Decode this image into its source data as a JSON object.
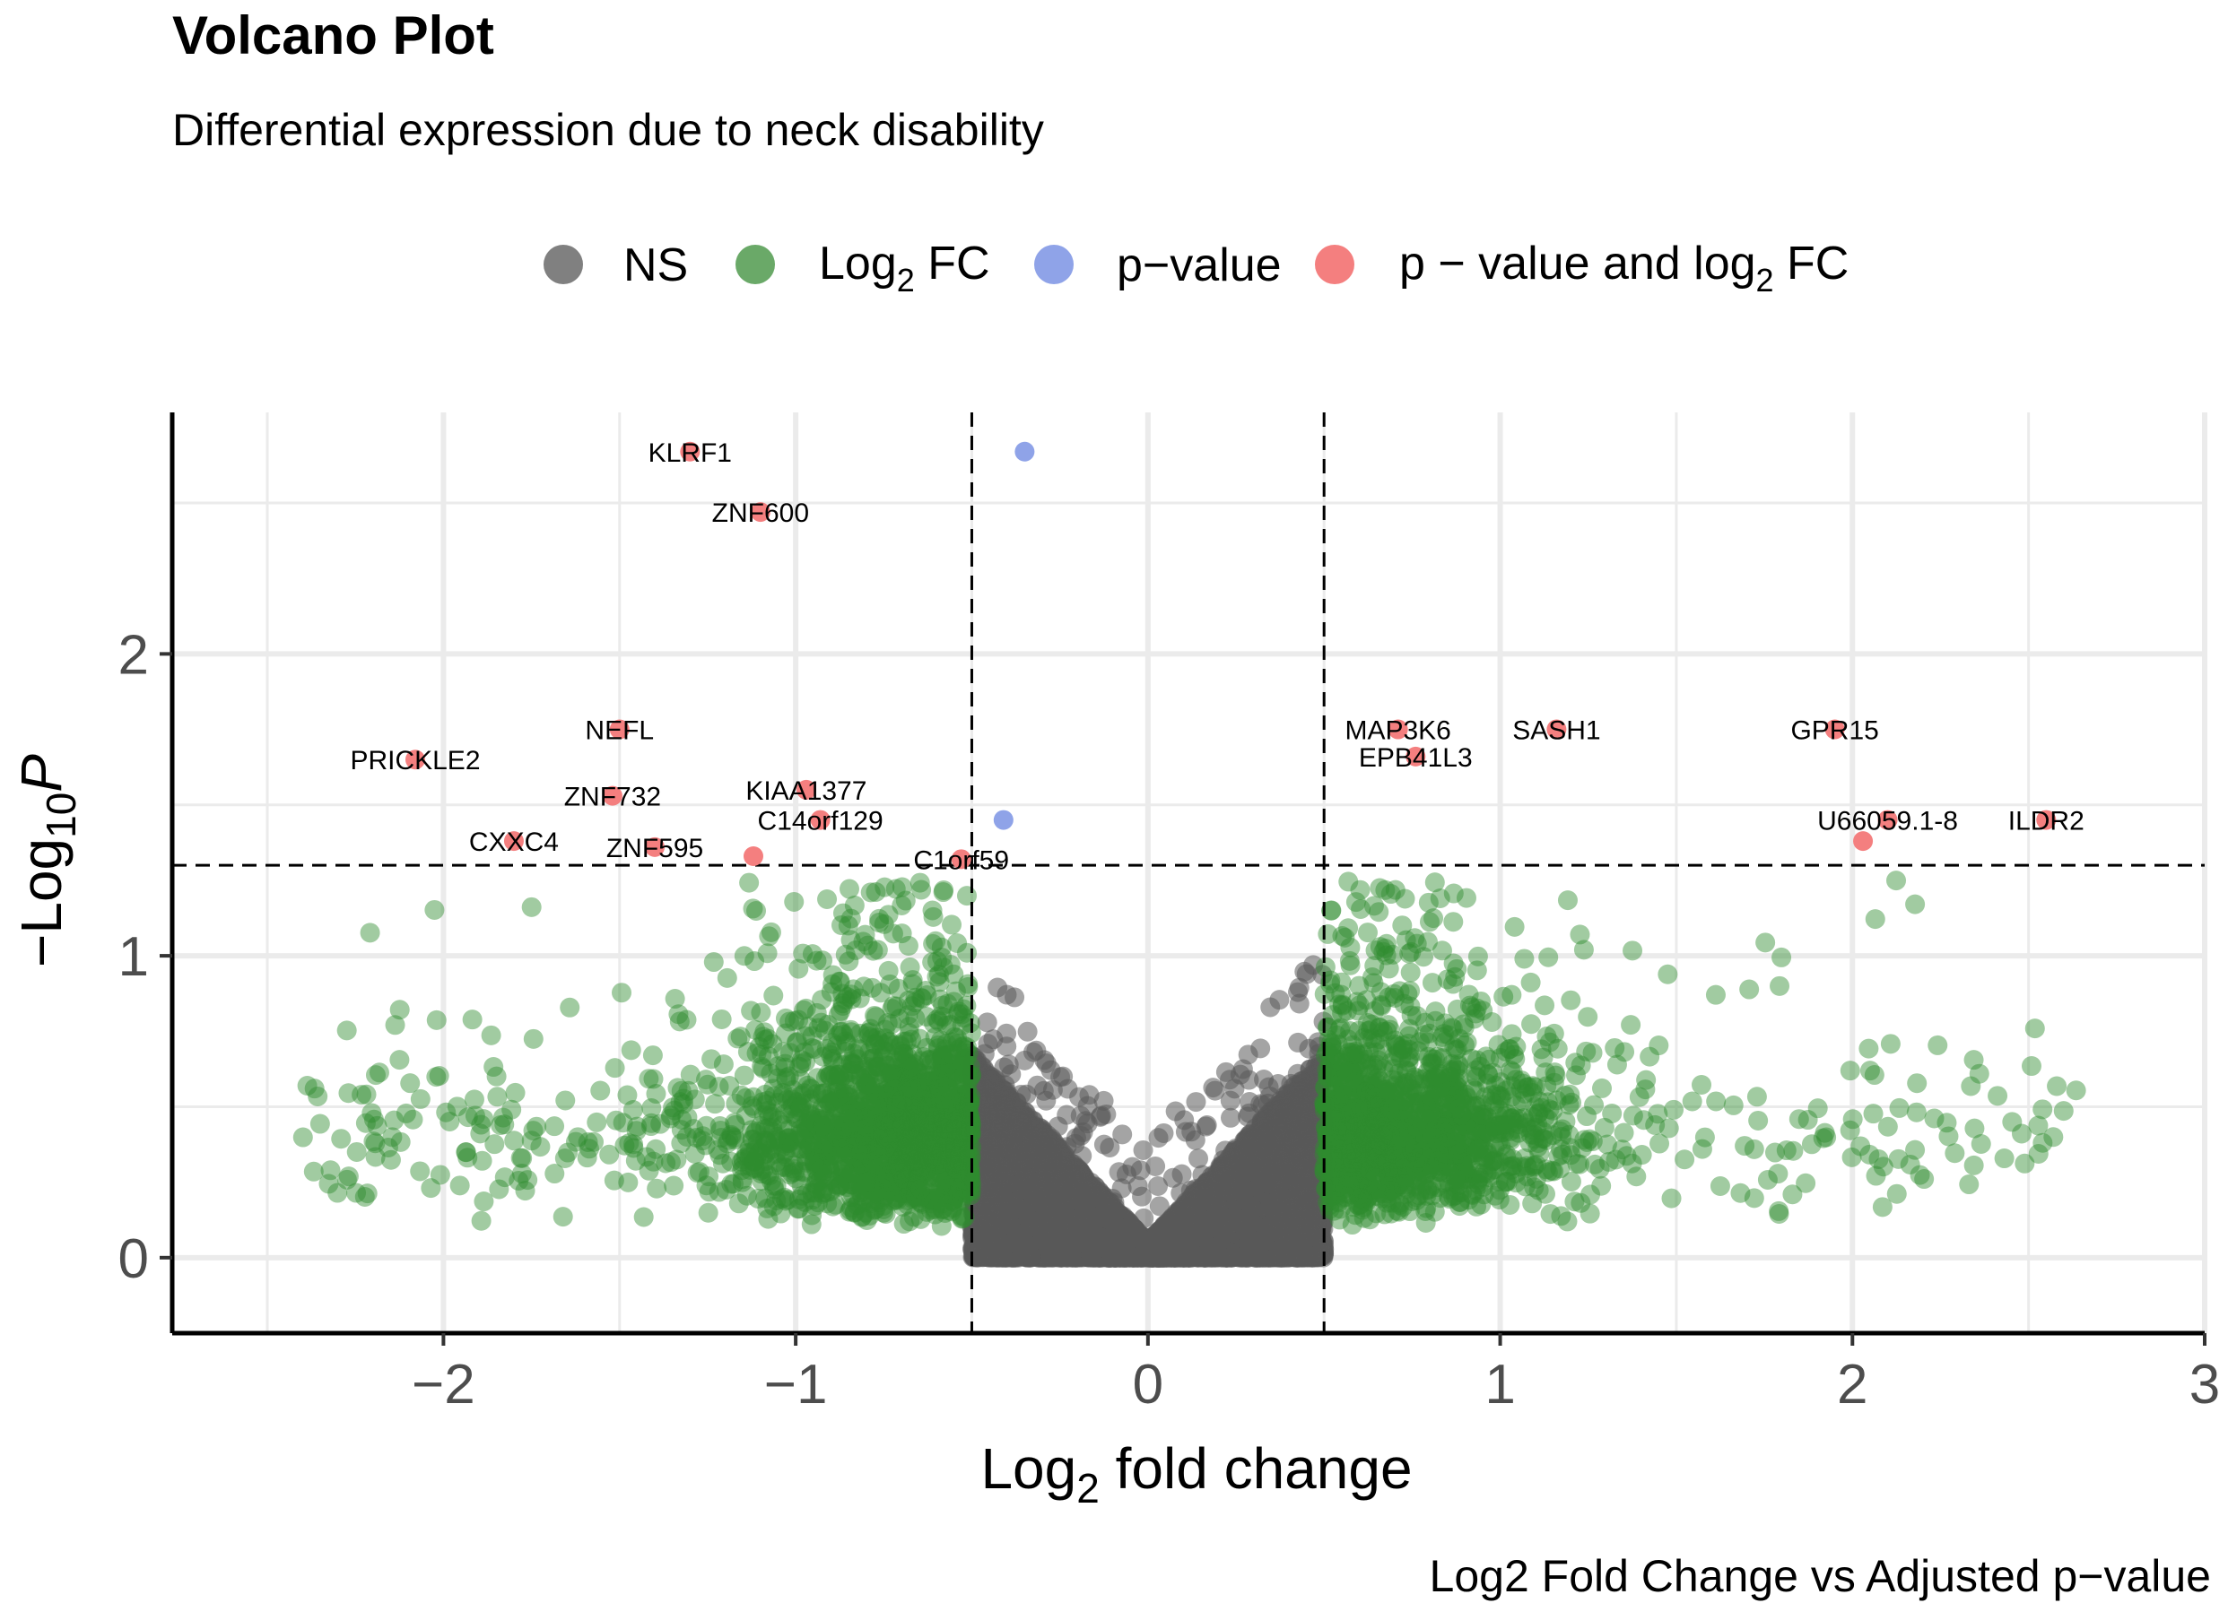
{
  "title": "Volcano Plot",
  "subtitle": "Differential expression due to neck disability",
  "caption": "Log2 Fold Change vs Adjusted p−value",
  "legend": [
    {
      "key": "ns",
      "label": "NS",
      "color": "#808080"
    },
    {
      "key": "fc",
      "label_main": "Log",
      "label_sub": "2",
      "label_tail": " FC",
      "color": "#6aa968"
    },
    {
      "key": "p",
      "label": "p−value",
      "color": "#8fa3e8"
    },
    {
      "key": "both",
      "label_main": "p − value and log",
      "label_sub": "2",
      "label_tail": " FC",
      "color": "#f47f7f"
    }
  ],
  "axes": {
    "xlabel_main": "Log",
    "xlabel_sub": "2",
    "xlabel_tail": " fold change",
    "ylabel_prefix": "−Log",
    "ylabel_sub": "10",
    "ylabel_p": "P",
    "x_ticks": [
      "−2",
      "−1",
      "0",
      "1",
      "2",
      "3"
    ],
    "y_ticks": [
      "0",
      "1",
      "2"
    ]
  },
  "chart_data": {
    "type": "scatter",
    "title": "Volcano Plot",
    "subtitle": "Differential expression due to neck disability",
    "xlabel": "Log2 fold change",
    "ylabel": "-Log10 P",
    "xlim": [
      -2.77,
      3.0
    ],
    "ylim": [
      -0.25,
      2.8
    ],
    "x_tick_values": [
      -2,
      -1,
      0,
      1,
      2,
      3
    ],
    "y_tick_values": [
      0,
      1,
      2
    ],
    "thresholds": {
      "log2fc": 0.5,
      "neg_log10_p": 1.3
    },
    "colors": {
      "ns": "#595959",
      "fc": "#2e8b2e",
      "p": "#8fa3e8",
      "both": "#f47f7f"
    },
    "significant_genes": [
      {
        "gene": "KLRF1",
        "x": -1.3,
        "y": 2.67
      },
      {
        "gene": "ZNF600",
        "x": -1.1,
        "y": 2.47
      },
      {
        "gene": "NEFL",
        "x": -1.5,
        "y": 1.75
      },
      {
        "gene": "PRICKLE2",
        "x": -2.08,
        "y": 1.65
      },
      {
        "gene": "ZNF732",
        "x": -1.52,
        "y": 1.53
      },
      {
        "gene": "KIAA1377",
        "x": -0.97,
        "y": 1.55
      },
      {
        "gene": "C14orf129",
        "x": -0.93,
        "y": 1.45
      },
      {
        "gene": "CXXC4",
        "x": -1.8,
        "y": 1.38
      },
      {
        "gene": "ZNF595",
        "x": -1.4,
        "y": 1.36
      },
      {
        "gene": "C1orf59",
        "x": -0.53,
        "y": 1.32
      },
      {
        "gene": "MAP3K6",
        "x": 0.71,
        "y": 1.75
      },
      {
        "gene": "EPB41L3",
        "x": 0.76,
        "y": 1.66
      },
      {
        "gene": "SASH1",
        "x": 1.16,
        "y": 1.75
      },
      {
        "gene": "GPR15",
        "x": 1.95,
        "y": 1.75
      },
      {
        "gene": "U66059.1-8",
        "x": 2.1,
        "y": 1.45
      },
      {
        "gene": "ILDR2",
        "x": 2.55,
        "y": 1.45
      }
    ],
    "unlabeled_significant": [
      {
        "x": -1.12,
        "y": 1.33
      },
      {
        "x": 2.03,
        "y": 1.38
      }
    ],
    "pvalue_only": [
      {
        "x": -0.35,
        "y": 2.67
      },
      {
        "x": -0.41,
        "y": 1.45
      }
    ],
    "distribution": {
      "n_not_significant": 9000,
      "n_fc_only": 3400,
      "fc_min": -2.4,
      "fc_max": 2.66
    }
  }
}
